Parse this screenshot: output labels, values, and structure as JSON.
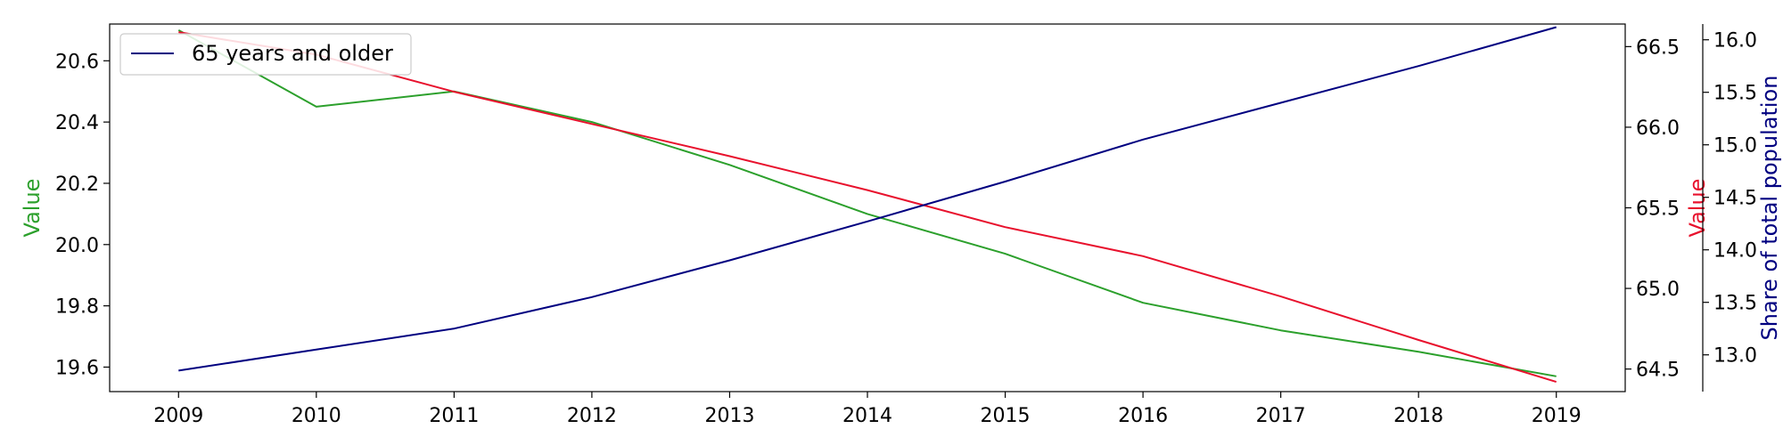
{
  "chart_data": {
    "type": "line",
    "x": [
      2009,
      2010,
      2011,
      2012,
      2013,
      2014,
      2015,
      2016,
      2017,
      2018,
      2019
    ],
    "axes": {
      "left": {
        "label": "Value",
        "color": "#2ca02c",
        "ylim": [
          19.52,
          20.72
        ],
        "ticks": [
          "19.6",
          "19.8",
          "20.0",
          "20.2",
          "20.4",
          "20.6"
        ]
      },
      "right1": {
        "label": "Value",
        "color": "#e8112d",
        "ylim": [
          64.36,
          66.64
        ],
        "ticks": [
          "64.5",
          "65.0",
          "65.5",
          "66.0",
          "66.5"
        ]
      },
      "right2": {
        "label": "Share of total population",
        "color": "#000080",
        "ylim": [
          12.65,
          16.15
        ],
        "ticks": [
          "13.0",
          "13.5",
          "14.0",
          "14.5",
          "15.0",
          "15.5",
          "16.0"
        ]
      }
    },
    "series": [
      {
        "axis": "left",
        "color": "#2ca02c",
        "values": [
          20.7,
          20.45,
          20.5,
          20.4,
          20.26,
          20.1,
          19.97,
          19.81,
          19.72,
          19.65,
          19.57
        ]
      },
      {
        "axis": "right1",
        "color": "#e8112d",
        "values": [
          66.59,
          66.45,
          66.22,
          66.02,
          65.82,
          65.61,
          65.38,
          65.2,
          64.95,
          64.68,
          64.42
        ]
      },
      {
        "name": "65 years and older",
        "axis": "right2",
        "color": "#000080",
        "values": [
          12.85,
          13.05,
          13.25,
          13.55,
          13.9,
          14.27,
          14.65,
          15.05,
          15.4,
          15.75,
          16.12
        ]
      }
    ],
    "legend": {
      "position": "top-left",
      "entries": [
        "65 years and older"
      ]
    },
    "grid": false
  }
}
